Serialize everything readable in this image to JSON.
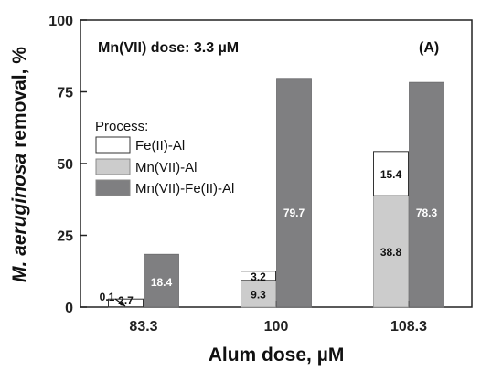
{
  "chart_data": {
    "type": "bar",
    "stacked_group": true,
    "categories": [
      "83.3",
      "100",
      "108.3"
    ],
    "xlabel_prefix": "Alum dose, ",
    "xlabel_unit": "µM",
    "ylabel_italic": "M. aeruginosa",
    "ylabel_rest": " removal, %",
    "ylim": [
      0,
      100
    ],
    "yticks": [
      "0",
      "25",
      "50",
      "75",
      "100"
    ],
    "annotation_prefix": "Mn(VII) dose: 3.3 ",
    "annotation_unit": "µM",
    "panel_label": "(A)",
    "legend_title": "Process:",
    "legend_position": "middle-left",
    "grid": false,
    "series": [
      {
        "name": "Fe(II)-Al",
        "color": "#ffffff",
        "values": [
          2.7,
          3.2,
          15.4
        ],
        "labels": [
          "2.7",
          "3.2",
          "15.4"
        ]
      },
      {
        "name": "Mn(VII)-Al",
        "color": "#cccccc",
        "values": [
          0.1,
          9.3,
          38.8
        ],
        "labels": [
          "0.1",
          "9.3",
          "38.8"
        ]
      },
      {
        "name": "Mn(VII)-Fe(II)-Al",
        "color": "#7f7f81",
        "values": [
          18.4,
          79.7,
          78.3
        ],
        "labels": [
          "18.4",
          "79.7",
          "78.3"
        ]
      }
    ],
    "note": "First bar of each group stacks Mn(VII)-Al (bottom) with Fe(II)-Al on top; second bar is Mn(VII)-Fe(II)-Al."
  }
}
